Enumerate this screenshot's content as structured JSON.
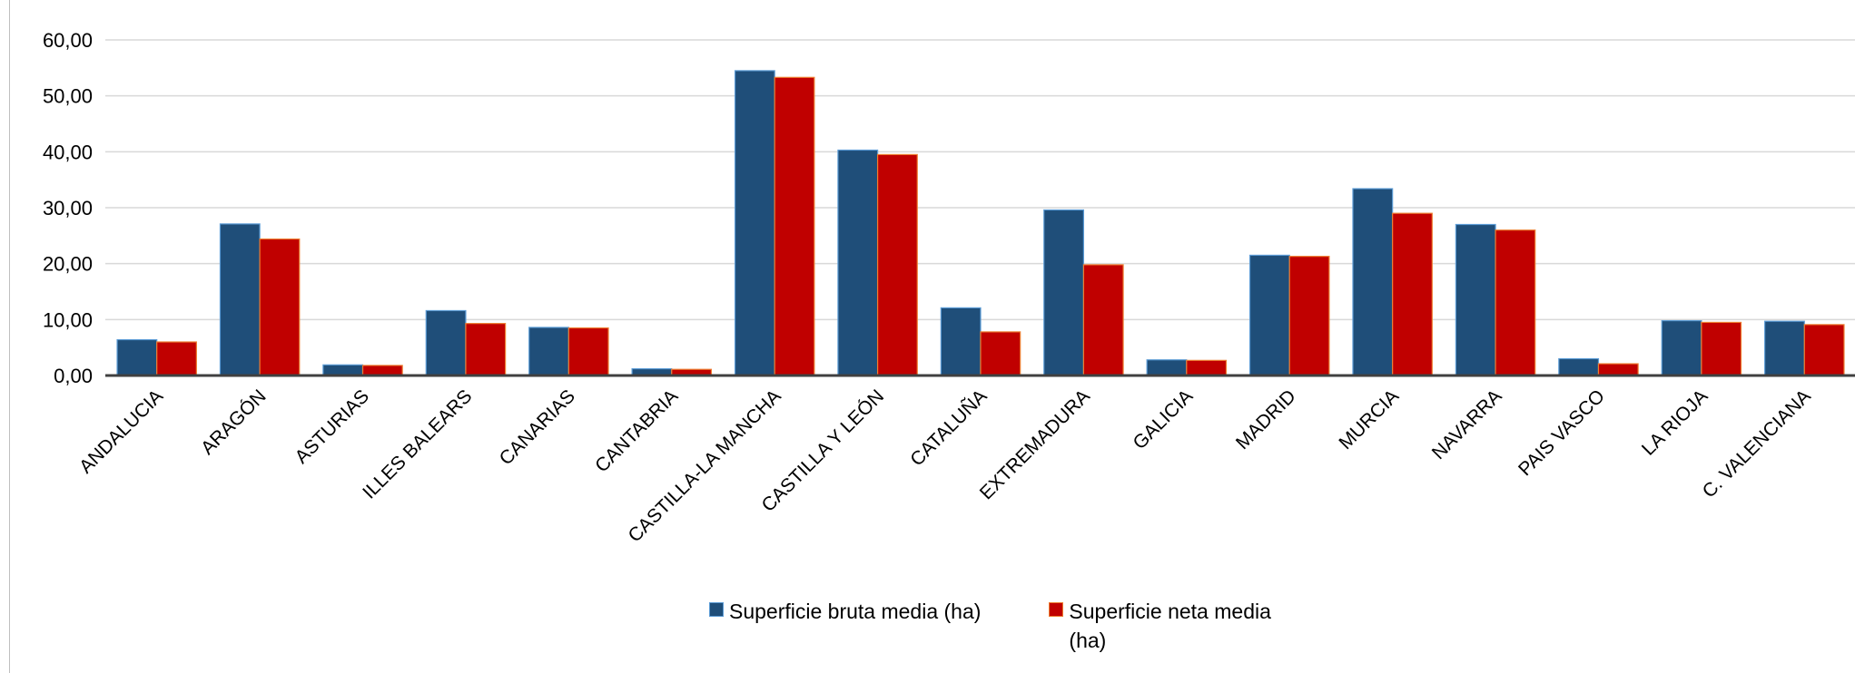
{
  "chart_data": {
    "type": "bar",
    "title": "",
    "xlabel": "",
    "ylabel": "",
    "ylim": [
      0,
      60
    ],
    "ytick_step": 10,
    "ytick_labels": [
      "0,00",
      "10,00",
      "20,00",
      "30,00",
      "40,00",
      "50,00",
      "60,00"
    ],
    "grid": true,
    "legend_position": "bottom",
    "categories": [
      "ANDALUCIA",
      "ARAGÓN",
      "ASTURIAS",
      "ILLES BALEARS",
      "CANARIAS",
      "CANTABRIA",
      "CASTILLA-LA MANCHA",
      "CASTILLA Y LEÓN",
      "CATALUÑA",
      "EXTREMADURA",
      "GALICIA",
      "MADRID",
      "MURCIA",
      "NAVARRA",
      "PAIS VASCO",
      "LA RIOJA",
      "C. VALENCIANA"
    ],
    "series": [
      {
        "name": "Superficie bruta media (ha)",
        "color": "#1f4e79",
        "values": [
          6.4,
          27.1,
          1.9,
          11.6,
          8.6,
          1.2,
          54.5,
          40.3,
          12.1,
          29.6,
          2.8,
          21.5,
          33.4,
          27.0,
          3.0,
          9.8,
          9.7
        ]
      },
      {
        "name": "Superficie neta media (ha)",
        "color": "#c00000",
        "values": [
          6.0,
          24.4,
          1.8,
          9.3,
          8.5,
          1.1,
          53.3,
          39.5,
          7.8,
          19.8,
          2.7,
          21.3,
          29.0,
          26.0,
          2.1,
          9.5,
          9.1
        ]
      }
    ],
    "legend_labels": {
      "s1": "Superficie bruta media (ha)",
      "s2_line1": "Superficie neta media",
      "s2_line2": "(ha)"
    }
  }
}
